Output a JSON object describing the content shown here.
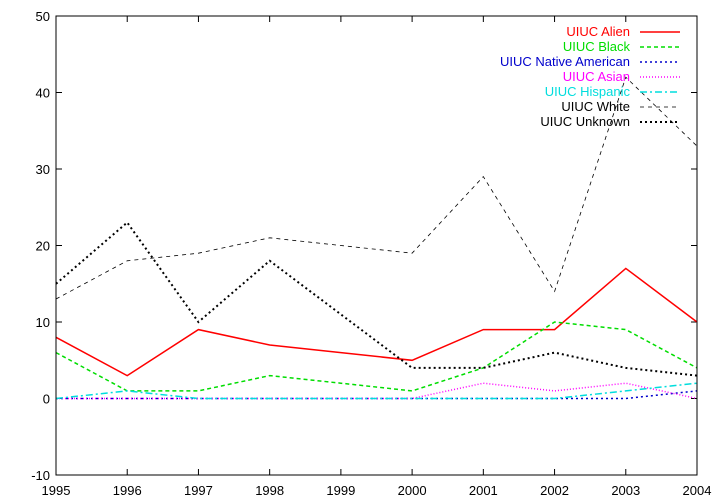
{
  "chart_data": {
    "type": "line",
    "title": "",
    "xlabel": "",
    "ylabel": "",
    "xlim": [
      1995,
      2004
    ],
    "ylim": [
      -10,
      50
    ],
    "x": [
      1995,
      1996,
      1997,
      1998,
      1999,
      2000,
      2001,
      2002,
      2003,
      2004
    ],
    "x_ticks": [
      "1995",
      "1996",
      "1997",
      "1998",
      "1999",
      "2000",
      "2001",
      "2002",
      "2003",
      "2004"
    ],
    "y_ticks": [
      "-10",
      "0",
      "10",
      "20",
      "30",
      "40",
      "50"
    ],
    "y_tick_values": [
      -10,
      0,
      10,
      20,
      30,
      40,
      50
    ],
    "grid": false,
    "legend_position": "top-right",
    "series": [
      {
        "name": "UIUC Alien",
        "color": "#ff0000",
        "dash": "solid",
        "values": [
          8,
          3,
          9,
          7,
          6,
          5,
          9,
          9,
          17,
          10
        ]
      },
      {
        "name": "UIUC Black",
        "color": "#00dd00",
        "dash": "dashed",
        "values": [
          6,
          1,
          1,
          3,
          2,
          1,
          4,
          10,
          9,
          4
        ]
      },
      {
        "name": "UIUC Native American",
        "color": "#0000cc",
        "dash": "dotted",
        "values": [
          0,
          0,
          0,
          0,
          0,
          0,
          0,
          0,
          0,
          1
        ]
      },
      {
        "name": "UIUC Asian",
        "color": "#ff00ff",
        "dash": "fine-dotted",
        "values": [
          0,
          0,
          0,
          0,
          0,
          0,
          2,
          1,
          2,
          0
        ]
      },
      {
        "name": "UIUC Hispanic",
        "color": "#00dddd",
        "dash": "dash-dot",
        "values": [
          0,
          1,
          0,
          0,
          0,
          0,
          0,
          0,
          1,
          2
        ]
      },
      {
        "name": "UIUC White",
        "color": "#000000",
        "dash": "thin-dashed",
        "values": [
          13,
          18,
          19,
          21,
          20,
          19,
          29,
          14,
          42,
          33
        ]
      },
      {
        "name": "UIUC Unknown",
        "color": "#000000",
        "dash": "dotted-bold",
        "values": [
          15,
          23,
          10,
          18,
          11,
          4,
          4,
          6,
          4,
          3
        ]
      }
    ]
  }
}
